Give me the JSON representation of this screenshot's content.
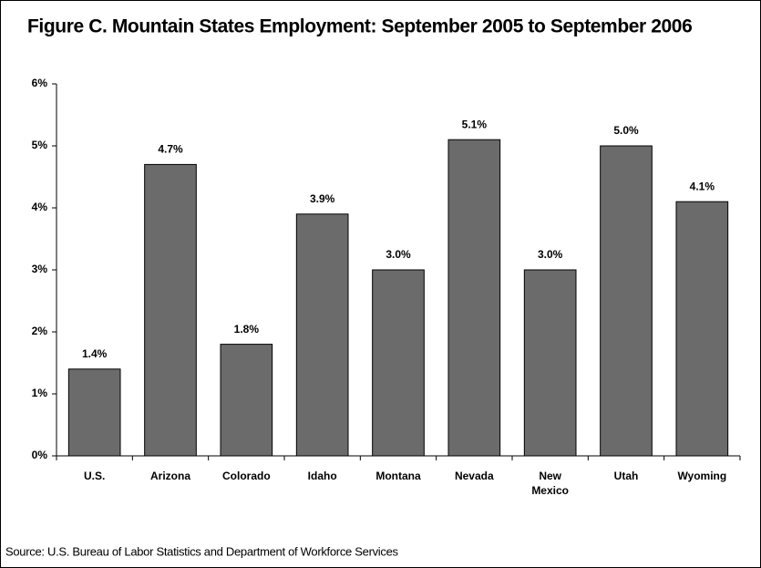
{
  "chart_data": {
    "type": "bar",
    "title": "Figure C.  Mountain States Employment: September 2005 to September 2006",
    "categories": [
      "U.S.",
      "Arizona",
      "Colorado",
      "Idaho",
      "Montana",
      "Nevada",
      "New Mexico",
      "Utah",
      "Wyoming"
    ],
    "values": [
      1.4,
      4.7,
      1.8,
      3.9,
      3.0,
      5.1,
      3.0,
      5.0,
      4.1
    ],
    "value_labels": [
      "1.4%",
      "4.7%",
      "1.8%",
      "3.9%",
      "3.0%",
      "5.1%",
      "3.0%",
      "5.0%",
      "4.1%"
    ],
    "color": "#6b6b6b",
    "ylim": [
      0,
      6
    ],
    "yticks": [
      {
        "value": 0,
        "label": "0%"
      },
      {
        "value": 1,
        "label": "1%"
      },
      {
        "value": 2,
        "label": "2%"
      },
      {
        "value": 3,
        "label": "3%"
      },
      {
        "value": 4,
        "label": "4%"
      },
      {
        "value": 5,
        "label": "5%"
      },
      {
        "value": 6,
        "label": "6%"
      }
    ],
    "grid": false,
    "source": "Source: U.S. Bureau of Labor Statistics and Department of Workforce Services"
  }
}
